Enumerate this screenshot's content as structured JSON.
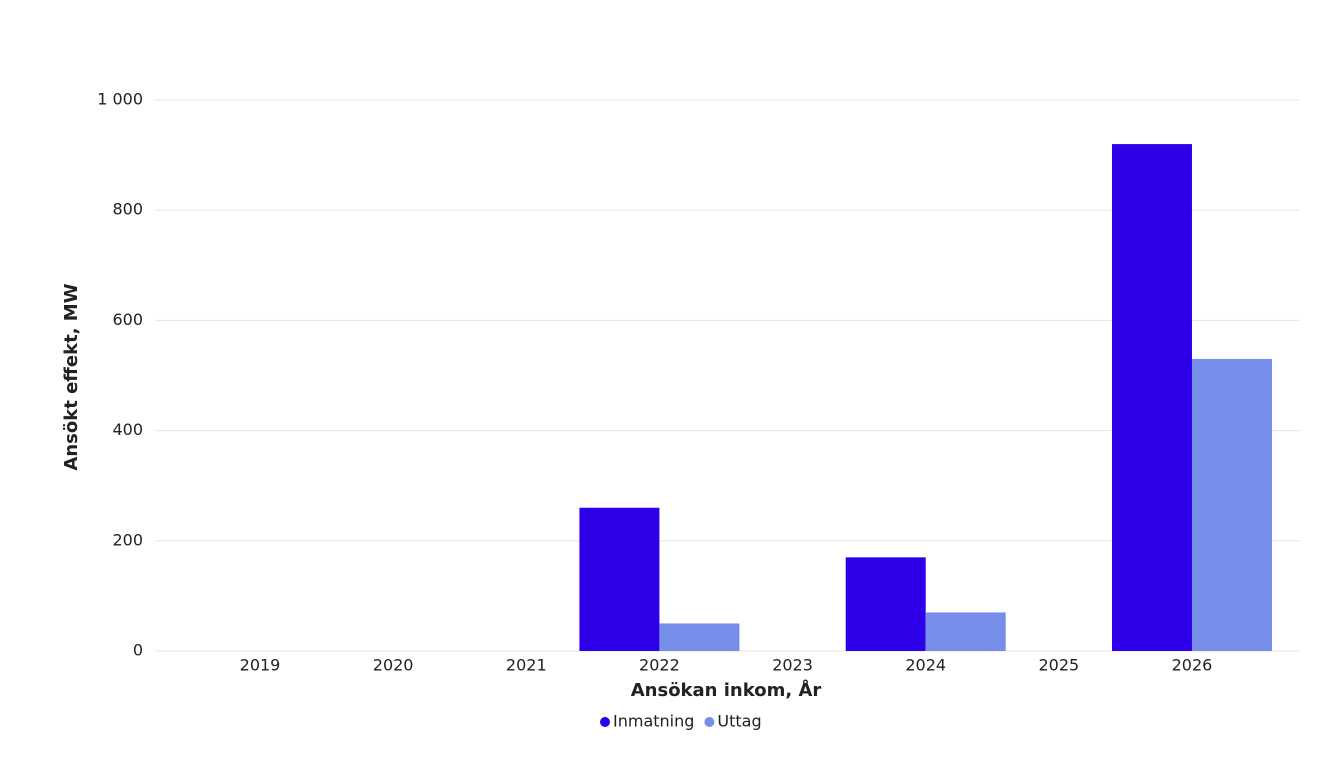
{
  "chart_data": {
    "type": "bar",
    "x_label": "Ansökan inkom, År",
    "y_label": "Ansökt effekt, MW",
    "categories": [
      "2019",
      "2020",
      "2021",
      "2022",
      "2023",
      "2024",
      "2025",
      "2026"
    ],
    "series": [
      {
        "name": "Inmatning",
        "color": "#2e00e8",
        "values": [
          0,
          0,
          0,
          260,
          0,
          170,
          0,
          920
        ]
      },
      {
        "name": "Uttag",
        "color": "#768eea",
        "values": [
          0,
          0,
          0,
          50,
          0,
          70,
          0,
          530
        ]
      }
    ],
    "ylim": [
      0,
      1000
    ],
    "yticks": [
      0,
      200,
      400,
      600,
      800,
      {
        "value": 1000,
        "label": "1 000"
      }
    ],
    "grid": true,
    "legend": "bottom"
  }
}
